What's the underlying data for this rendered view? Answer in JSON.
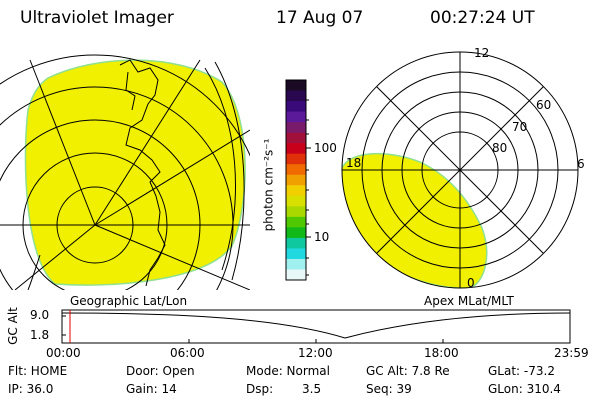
{
  "header": {
    "instrument": "Ultraviolet Imager",
    "date": "17 Aug 07",
    "time": "00:27:24 UT"
  },
  "colorbar": {
    "label": "photon cm⁻²s⁻¹",
    "ticks": [
      "100",
      "10"
    ],
    "colors": [
      "#1a0a24",
      "#2a0850",
      "#3a0a7a",
      "#5a1a9a",
      "#7a1a6a",
      "#a0103a",
      "#c8001a",
      "#e0300a",
      "#f06a00",
      "#f0a000",
      "#f0d000",
      "#d8e000",
      "#a8d800",
      "#50c800",
      "#10b818",
      "#10c8a0",
      "#20d8e0",
      "#a0f0f0",
      "#e8f8f8"
    ]
  },
  "panels": {
    "left_label": "Geographic Lat/Lon",
    "right_label": "Apex MLat/MLT"
  },
  "polar_labels": {
    "mlt_12": "12",
    "mlt_18": "18",
    "mlt_6": "6",
    "mlt_0": "0",
    "lat_60": "60",
    "lat_70": "70",
    "lat_80": "80"
  },
  "altitude_plot": {
    "ylabel": "GC Alt",
    "yticks": [
      "9.0",
      "1.8"
    ],
    "xticks": [
      "00:00",
      "06:00",
      "12:00",
      "18:00",
      "23:59"
    ]
  },
  "metadata": {
    "flt_label": "Flt: HOME",
    "ip_label": "IP: 36.0",
    "door_label": "Door: Open",
    "gain_label": "Gain: 14",
    "mode_label": "Mode: Normal",
    "dsp_label": "Dsp:",
    "dsp_value": "3.5",
    "gcalt_label": "GC Alt: 7.8 Re",
    "seq_label": "Seq: 39",
    "glat_label": "GLat: -73.2",
    "glon_label": "GLon: 310.4"
  },
  "colors": {
    "aurora_fill": "#f0f000",
    "aurora_edge": "#90e090",
    "marker": "#e00000"
  }
}
